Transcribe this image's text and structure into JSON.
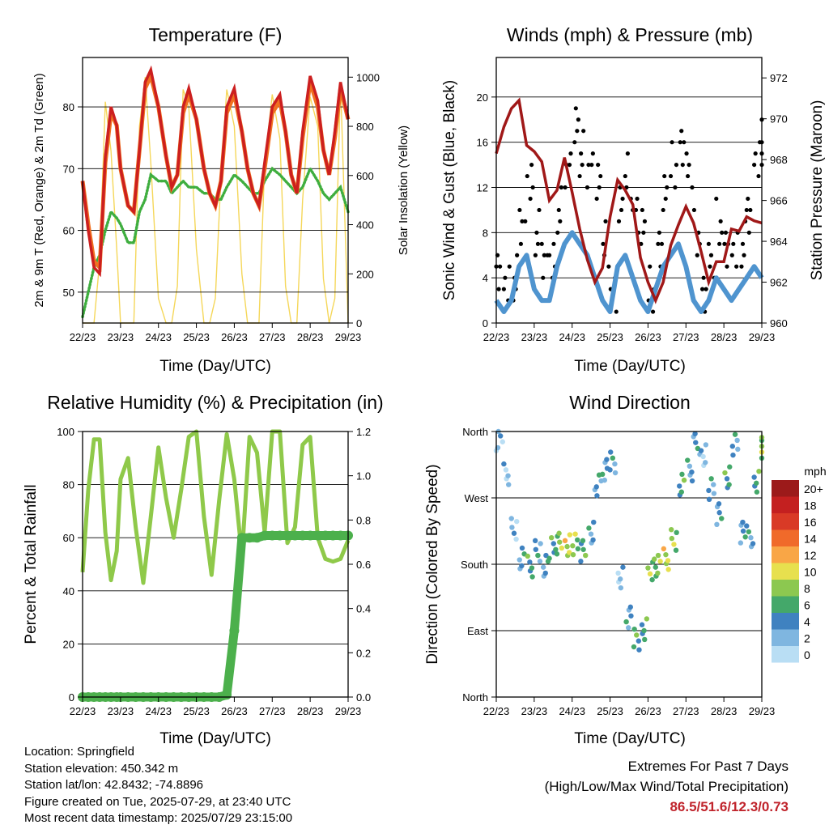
{
  "x_ticks": [
    "22/23",
    "23/23",
    "24/23",
    "25/23",
    "26/23",
    "27/23",
    "28/23",
    "29/23"
  ],
  "time_label": "Time (Day/UTC)",
  "panels": {
    "temperature": {
      "title": "Temperature (F)",
      "left_label": "2m & 9m T (Red, Orange) & 2m Td (Green)",
      "right_label": "Solar Insolation (Yellow)",
      "left_ticks": [
        "50",
        "60",
        "70",
        "80"
      ],
      "right_ticks": [
        "0",
        "200",
        "400",
        "600",
        "800",
        "1000"
      ]
    },
    "winds": {
      "title": "Winds (mph) & Pressure (mb)",
      "left_label": "Sonic Wind & Gust (Blue, Black)",
      "right_label": "Station Pressure (Maroon)",
      "left_ticks": [
        "0",
        "4",
        "8",
        "12",
        "16",
        "20"
      ],
      "right_ticks": [
        "960",
        "962",
        "964",
        "966",
        "968",
        "970",
        "972"
      ]
    },
    "humidity": {
      "title": "Relative Humidity (%) & Precipitation (in)",
      "left_label": "Percent & Total Rainfall",
      "left_ticks": [
        "0",
        "20",
        "40",
        "60",
        "80",
        "100"
      ],
      "right_ticks": [
        "0.0",
        "0.2",
        "0.4",
        "0.6",
        "0.8",
        "1.0",
        "1.2"
      ]
    },
    "direction": {
      "title": "Wind Direction",
      "left_label": "Direction (Colored By Speed)",
      "left_ticks": [
        "North",
        "East",
        "South",
        "West",
        "North"
      ],
      "legend_title": "mph",
      "legend_labels": [
        "20+",
        "18",
        "16",
        "14",
        "12",
        "10",
        "8",
        "6",
        "4",
        "2",
        "0"
      ]
    }
  },
  "info": {
    "location": "Location: Springfield",
    "elevation": "Station elevation: 450.342 m",
    "latlon": "Station lat/lon: 42.8432; -74.8896",
    "created": "Figure created on Tue, 2025-07-29, at 23:40 UTC",
    "recent": "Most recent data timestamp: 2025/07/29 23:15:00"
  },
  "extremes": {
    "title": "Extremes For Past 7 Days",
    "subtitle": "(High/Low/Max Wind/Total Precipitation)",
    "values": "86.5/51.6/12.3/0.73"
  },
  "colors": {
    "temp_2m": "#cc1f1f",
    "temp_9m": "#f07020",
    "dewpoint": "#3fae3f",
    "solar": "#f5d75a",
    "wind": "#4f94cf",
    "gust": "#000000",
    "pressure": "#a01818",
    "rh": "#8fc94a",
    "rain": "#4cb04c",
    "legend_scale": [
      "#9c1a1a",
      "#c42020",
      "#d93a26",
      "#f06a2a",
      "#f9a646",
      "#e7e04e",
      "#8cc850",
      "#44a86a",
      "#3f82c0",
      "#7fb6e0",
      "#b9def4"
    ]
  },
  "chart_data": [
    {
      "type": "line",
      "title": "Temperature (F)",
      "xlabel": "Time (Day/UTC)",
      "ylabel": "2m & 9m T (Red, Orange) & 2m Td (Green)",
      "y2label": "Solar Insolation (Yellow)",
      "x": [
        0.0,
        0.15,
        0.3,
        0.45,
        0.6,
        0.75,
        0.9,
        1.0,
        1.2,
        1.35,
        1.5,
        1.65,
        1.8,
        2.0,
        2.2,
        2.35,
        2.5,
        2.65,
        2.8,
        3.0,
        3.2,
        3.35,
        3.5,
        3.65,
        3.8,
        4.0,
        4.2,
        4.35,
        4.5,
        4.65,
        4.8,
        5.0,
        5.2,
        5.35,
        5.5,
        5.65,
        5.8,
        6.0,
        6.2,
        6.35,
        6.5,
        6.65,
        6.8,
        7.0
      ],
      "ylim": [
        45,
        88
      ],
      "y2lim": [
        0,
        1080
      ],
      "series": [
        {
          "name": "2m T",
          "values": [
            68,
            60,
            54,
            53,
            72,
            80,
            77,
            70,
            64,
            63,
            73,
            84,
            86,
            80,
            72,
            67,
            69,
            80,
            83,
            78,
            70,
            66,
            64,
            68,
            80,
            83,
            76,
            70,
            66,
            64,
            71,
            80,
            82,
            76,
            69,
            66,
            76,
            85,
            81,
            73,
            69,
            76,
            84,
            78
          ]
        },
        {
          "name": "9m T",
          "values": [
            68,
            61,
            55,
            54,
            71,
            79,
            77,
            70,
            64,
            63,
            73,
            83,
            85,
            80,
            72,
            67,
            69,
            79,
            82,
            78,
            70,
            66,
            64,
            68,
            79,
            82,
            76,
            70,
            66,
            64,
            70,
            79,
            81,
            76,
            69,
            66,
            75,
            84,
            80,
            73,
            69,
            75,
            83,
            78
          ]
        },
        {
          "name": "2m Td",
          "values": [
            46,
            50,
            54,
            56,
            60,
            63,
            62,
            61,
            58,
            58,
            63,
            65,
            69,
            68,
            68,
            66,
            67,
            68,
            67,
            67,
            66,
            66,
            65,
            65,
            67,
            69,
            68,
            67,
            66,
            66,
            68,
            70,
            69,
            68,
            67,
            66,
            67,
            70,
            68,
            66,
            65,
            66,
            67,
            63
          ]
        },
        {
          "name": "Solar Insolation",
          "values": [
            0,
            0,
            0,
            250,
            900,
            700,
            300,
            0,
            0,
            0,
            800,
            1000,
            650,
            100,
            0,
            0,
            150,
            950,
            880,
            300,
            0,
            0,
            100,
            600,
            950,
            800,
            200,
            0,
            0,
            0,
            650,
            930,
            750,
            150,
            0,
            0,
            500,
            920,
            800,
            180,
            0,
            100,
            980,
            0
          ]
        }
      ]
    },
    {
      "type": "line",
      "title": "Winds (mph) & Pressure (mb)",
      "xlabel": "Time (Day/UTC)",
      "ylabel": "Sonic Wind & Gust (Blue, Black)",
      "y2label": "Station Pressure (Maroon)",
      "x": [
        0.0,
        0.2,
        0.4,
        0.6,
        0.8,
        1.0,
        1.2,
        1.4,
        1.6,
        1.8,
        2.0,
        2.2,
        2.4,
        2.6,
        2.8,
        3.0,
        3.2,
        3.4,
        3.6,
        3.8,
        4.0,
        4.2,
        4.4,
        4.6,
        4.8,
        5.0,
        5.2,
        5.4,
        5.6,
        5.8,
        6.0,
        6.2,
        6.4,
        6.6,
        6.8,
        7.0
      ],
      "ylim": [
        0,
        23.5
      ],
      "y2lim": [
        960,
        973
      ],
      "series": [
        {
          "name": "Sonic Wind",
          "values": [
            2,
            1,
            2,
            5,
            6,
            3,
            2,
            2,
            5,
            7,
            8,
            7,
            6,
            4,
            2,
            1,
            5,
            6,
            4,
            2,
            1,
            3,
            5,
            6,
            7,
            5,
            2,
            1,
            2,
            4,
            3,
            2,
            3,
            4,
            5,
            4
          ]
        },
        {
          "name": "Gust",
          "values": [
            5,
            3,
            4,
            9,
            12,
            8,
            6,
            5,
            10,
            14,
            17,
            15,
            14,
            12,
            7,
            3,
            10,
            13,
            10,
            8,
            3,
            7,
            11,
            14,
            16,
            13,
            8,
            3,
            5,
            9,
            7,
            6,
            7,
            10,
            14,
            16
          ]
        },
        {
          "name": "Station Pressure",
          "values": [
            968.3,
            969.6,
            970.5,
            970.9,
            968.7,
            968.4,
            967.9,
            966.0,
            966.5,
            968.1,
            966.4,
            964.6,
            963.1,
            962.0,
            962.7,
            965.2,
            967.0,
            966.5,
            965.8,
            963.2,
            962.0,
            961.1,
            962.0,
            963.8,
            964.8,
            965.7,
            964.9,
            963.5,
            962.0,
            963.0,
            963.0,
            964.6,
            964.5,
            965.2,
            965.0,
            964.9
          ]
        }
      ]
    },
    {
      "type": "line",
      "title": "Relative Humidity (%) & Precipitation (in)",
      "xlabel": "Time (Day/UTC)",
      "ylabel": "Percent & Total Rainfall",
      "x": [
        0.0,
        0.15,
        0.3,
        0.45,
        0.6,
        0.75,
        0.9,
        1.0,
        1.2,
        1.4,
        1.6,
        1.8,
        2.0,
        2.2,
        2.4,
        2.6,
        2.8,
        3.0,
        3.2,
        3.4,
        3.6,
        3.8,
        4.0,
        4.2,
        4.4,
        4.6,
        4.8,
        5.0,
        5.2,
        5.4,
        5.6,
        5.8,
        6.0,
        6.2,
        6.4,
        6.6,
        6.8,
        7.0
      ],
      "ylim": [
        0,
        100
      ],
      "y2lim": [
        0,
        1.2
      ],
      "series": [
        {
          "name": "Relative Humidity",
          "values": [
            47,
            78,
            97,
            97,
            62,
            44,
            55,
            82,
            90,
            64,
            43,
            68,
            94,
            75,
            60,
            78,
            98,
            100,
            68,
            46,
            74,
            99,
            82,
            53,
            98,
            92,
            62,
            100,
            100,
            58,
            64,
            95,
            98,
            60,
            52,
            51,
            52,
            59
          ]
        },
        {
          "name": "Total Rainfall",
          "values": [
            0,
            0,
            0,
            0,
            0,
            0,
            0,
            0,
            0,
            0,
            0,
            0,
            0,
            0,
            0,
            0,
            0,
            0,
            0,
            0,
            0,
            0.01,
            0.3,
            0.72,
            0.72,
            0.72,
            0.73,
            0.73,
            0.73,
            0.73,
            0.73,
            0.73,
            0.73,
            0.73,
            0.73,
            0.73,
            0.73,
            0.73
          ]
        }
      ]
    },
    {
      "type": "scatter",
      "title": "Wind Direction",
      "xlabel": "Time (Day/UTC)",
      "ylabel": "Direction (Colored By Speed)",
      "y_tick_labels": [
        "North",
        "East",
        "South",
        "West",
        "North"
      ],
      "ylim": [
        0,
        360
      ],
      "x": [
        0.0,
        0.2,
        0.4,
        0.6,
        0.8,
        1.0,
        1.2,
        1.4,
        1.6,
        1.8,
        2.0,
        2.2,
        2.4,
        2.6,
        2.8,
        3.0,
        3.2,
        3.4,
        3.6,
        3.8,
        4.0,
        4.2,
        4.4,
        4.6,
        4.8,
        5.0,
        5.2,
        5.4,
        5.6,
        5.8,
        6.0,
        6.2,
        6.4,
        6.6,
        6.8,
        7.0
      ],
      "series": [
        {
          "name": "Direction (deg)",
          "values": [
            350,
            300,
            230,
            190,
            175,
            200,
            180,
            200,
            210,
            208,
            205,
            200,
            225,
            285,
            310,
            320,
            160,
            110,
            80,
            90,
            175,
            180,
            185,
            215,
            290,
            305,
            345,
            330,
            280,
            250,
            300,
            340,
            225,
            220,
            290,
            340
          ]
        },
        {
          "name": "Speed (mph)",
          "values": [
            2,
            2,
            1,
            3,
            6,
            4,
            3,
            5,
            8,
            9,
            7,
            5,
            4,
            3,
            4,
            3,
            2,
            4,
            5,
            5,
            7,
            8,
            9,
            7,
            6,
            4,
            3,
            2,
            4,
            4,
            5,
            3,
            3,
            4,
            6,
            7
          ]
        }
      ]
    }
  ]
}
